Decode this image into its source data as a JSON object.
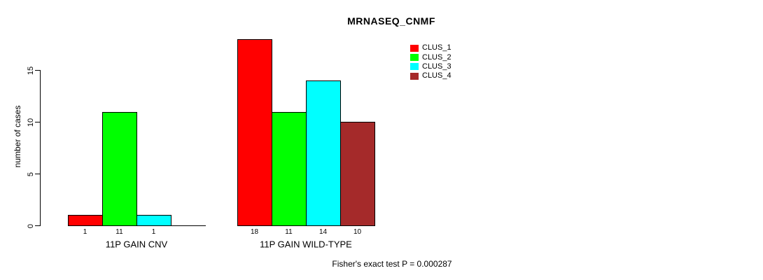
{
  "chart_data": {
    "type": "bar",
    "title": "MRNASEQ_CNMF",
    "ylabel": "number of cases",
    "xlabel": "",
    "yticks": [
      0,
      5,
      10,
      15
    ],
    "ylim": [
      0,
      18.8
    ],
    "grid": false,
    "legend_position": "top-right",
    "series": [
      "CLUS_1",
      "CLUS_2",
      "CLUS_3",
      "CLUS_4"
    ],
    "colors": [
      "#ff0000",
      "#00ff00",
      "#00ffff",
      "#a52a2a"
    ],
    "categories": [
      "11P GAIN CNV",
      "11P GAIN WILD-TYPE"
    ],
    "groups": [
      {
        "label": "11P GAIN CNV",
        "values": [
          1,
          11,
          1,
          0
        ]
      },
      {
        "label": "11P GAIN WILD-TYPE",
        "values": [
          18,
          11,
          14,
          10
        ]
      }
    ],
    "annotation": "Fisher's exact test P = 0.000287"
  }
}
